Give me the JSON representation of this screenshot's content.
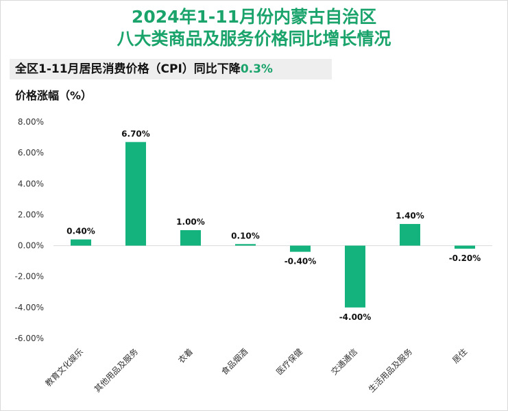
{
  "title_line1": "2024年1-11月份内蒙古自治区",
  "title_line2": "八大类商品及服务价格同比增长情况",
  "subtitle_text": "全区1-11月居民消费价格（CPI）同比下降",
  "subtitle_value": "0.3%",
  "unit_label": "价格涨幅（%）",
  "colors": {
    "accent": "#1aa36b",
    "bar": "#14b37d"
  },
  "chart_data": {
    "type": "bar",
    "categories": [
      "教育文化娱乐",
      "其他用品及服务",
      "衣着",
      "食品烟酒",
      "医疗保健",
      "交通通信",
      "生活用品及服务",
      "居住"
    ],
    "values": [
      0.4,
      6.7,
      1.0,
      0.1,
      -0.4,
      -4.0,
      1.4,
      -0.2
    ],
    "data_labels": [
      "0.40%",
      "6.70%",
      "1.00%",
      "0.10%",
      "-0.40%",
      "-4.00%",
      "1.40%",
      "-0.20%"
    ],
    "y_ticks": [
      "8.00%",
      "6.00%",
      "4.00%",
      "2.00%",
      "0.00%",
      "-2.00%",
      "-4.00%",
      "-6.00%"
    ],
    "ylim": [
      -6,
      8
    ],
    "grid": false,
    "legend": "none"
  }
}
